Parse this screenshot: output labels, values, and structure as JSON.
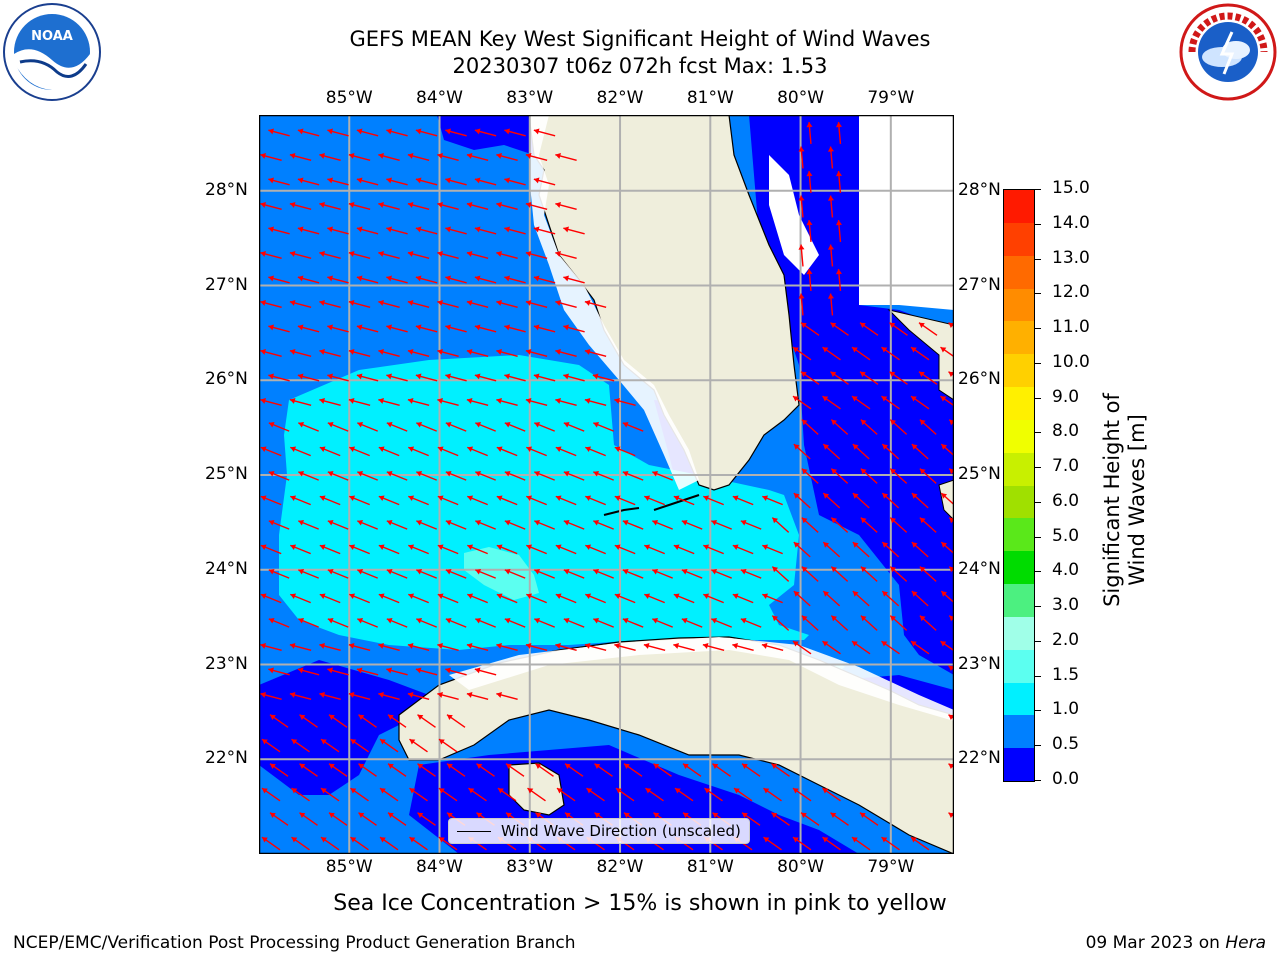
{
  "title": {
    "line1": "GEFS MEAN Key West Significant Height of Wind Waves",
    "line2": "20230307 t06z 072h fcst   Max: 1.53"
  },
  "axes": {
    "lon_labels": [
      "85°W",
      "84°W",
      "83°W",
      "82°W",
      "81°W",
      "80°W",
      "79°W"
    ],
    "lon_values": [
      -85,
      -84,
      -83,
      -82,
      -81,
      -80,
      -79
    ],
    "lat_labels": [
      "28°N",
      "27°N",
      "26°N",
      "25°N",
      "24°N",
      "23°N",
      "22°N"
    ],
    "lat_values": [
      28,
      27,
      26,
      25,
      24,
      23,
      22
    ],
    "lon_range": [
      -86.0,
      -78.3
    ],
    "lat_range": [
      21.0,
      28.8
    ]
  },
  "colorbar": {
    "label": "Significant Height of Wind Waves [m]",
    "ticks": [
      "15.0",
      "14.0",
      "13.0",
      "12.0",
      "11.0",
      "10.0",
      "9.0",
      "8.0",
      "7.0",
      "6.0",
      "5.0",
      "4.0",
      "3.0",
      "2.0",
      "1.5",
      "1.0",
      "0.5",
      "0.0"
    ],
    "colors": [
      "#ff1a00",
      "#ff4000",
      "#ff6a00",
      "#ff8c00",
      "#ffb000",
      "#ffd000",
      "#fff000",
      "#f0ff00",
      "#c8f000",
      "#a0e000",
      "#5ae81a",
      "#00dc00",
      "#4cf080",
      "#a0ffe8",
      "#5cfff0",
      "#00f0ff",
      "#0080ff",
      "#0000ff"
    ]
  },
  "legend": {
    "label": "Wind Wave Direction (unscaled)"
  },
  "caption": "Sea Ice Concentration > 15% is shown in pink to yellow",
  "footer": {
    "left": "NCEP/EMC/Verification Post Processing Product Generation Branch",
    "right_date": "09 Mar 2023 on ",
    "right_host": "Hera"
  },
  "logos": {
    "left": "NOAA",
    "right": "NATIONAL WEATHER SERVICE"
  },
  "colors": {
    "arrow": "#ff0000",
    "land": "#efeedc",
    "grid": "#b0b0b0"
  }
}
